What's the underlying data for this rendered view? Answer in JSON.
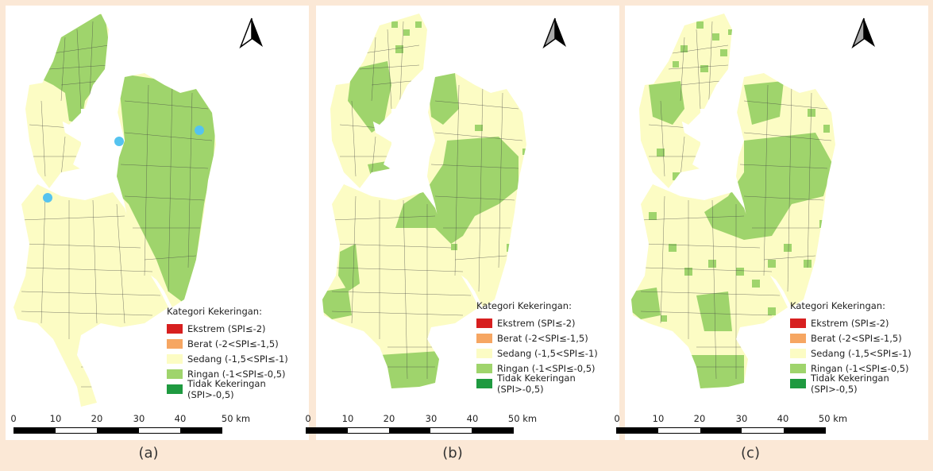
{
  "colors": {
    "background": "#fbe8d6",
    "sedang": "#fcfcc4",
    "ringan": "#9fd46c",
    "station": "#55c3ef",
    "ekstrem": "#d71f1f",
    "berat": "#f6a662",
    "tidak": "#1f9a40"
  },
  "legend": {
    "title": "Kategori Kekeringan:",
    "items": [
      {
        "label": "Ekstrem (SPI≤-2)",
        "color": "#d71f1f"
      },
      {
        "label": "Berat (-2<SPI≤-1,5)",
        "color": "#f6a662"
      },
      {
        "label": "Sedang (-1,5<SPI≤-1)",
        "color": "#fcfcc4"
      },
      {
        "label": "Ringan (-1<SPI≤-0,5)",
        "color": "#9fd46c"
      },
      {
        "label": "Tidak Kekeringan (SPI>-0,5)",
        "color": "#1f9a40"
      }
    ]
  },
  "scale": {
    "ticks": [
      "0",
      "10",
      "20",
      "30",
      "40",
      "50 km"
    ]
  },
  "north_arrow": "north-arrow-icon",
  "panels": [
    {
      "caption": "(a)"
    },
    {
      "caption": "(b)"
    },
    {
      "caption": "(c)"
    }
  ]
}
